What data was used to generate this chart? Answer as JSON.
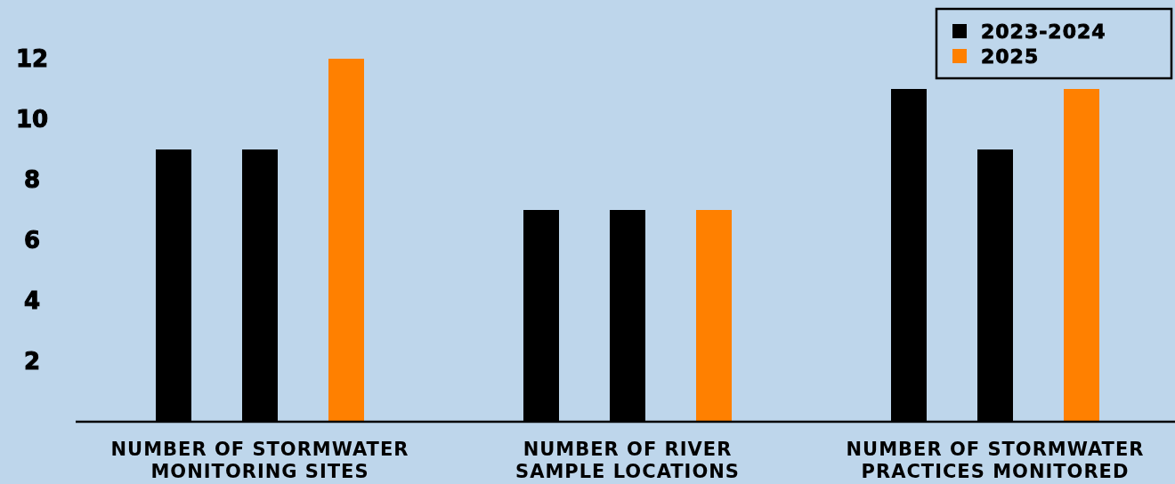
{
  "chart_data": {
    "type": "bar",
    "categories": [
      "NUMBER OF STORMWATER MONITORING SITES",
      "NUMBER OF RIVER SAMPLE LOCATIONS",
      "NUMBER OF STORMWATER PRACTICES MONITORED"
    ],
    "series": [
      {
        "name": "2023-2024",
        "color": "#000000",
        "values": [
          9,
          7,
          11
        ]
      },
      {
        "color": "#000000",
        "values": [
          9,
          7,
          9
        ]
      },
      {
        "name": "2025",
        "color": "#ff8000",
        "values": [
          12,
          7,
          11
        ]
      }
    ],
    "ylim": [
      0,
      14
    ],
    "yticks": [
      2,
      4,
      6,
      8,
      10,
      12
    ],
    "grid": false,
    "legend": "top right"
  }
}
